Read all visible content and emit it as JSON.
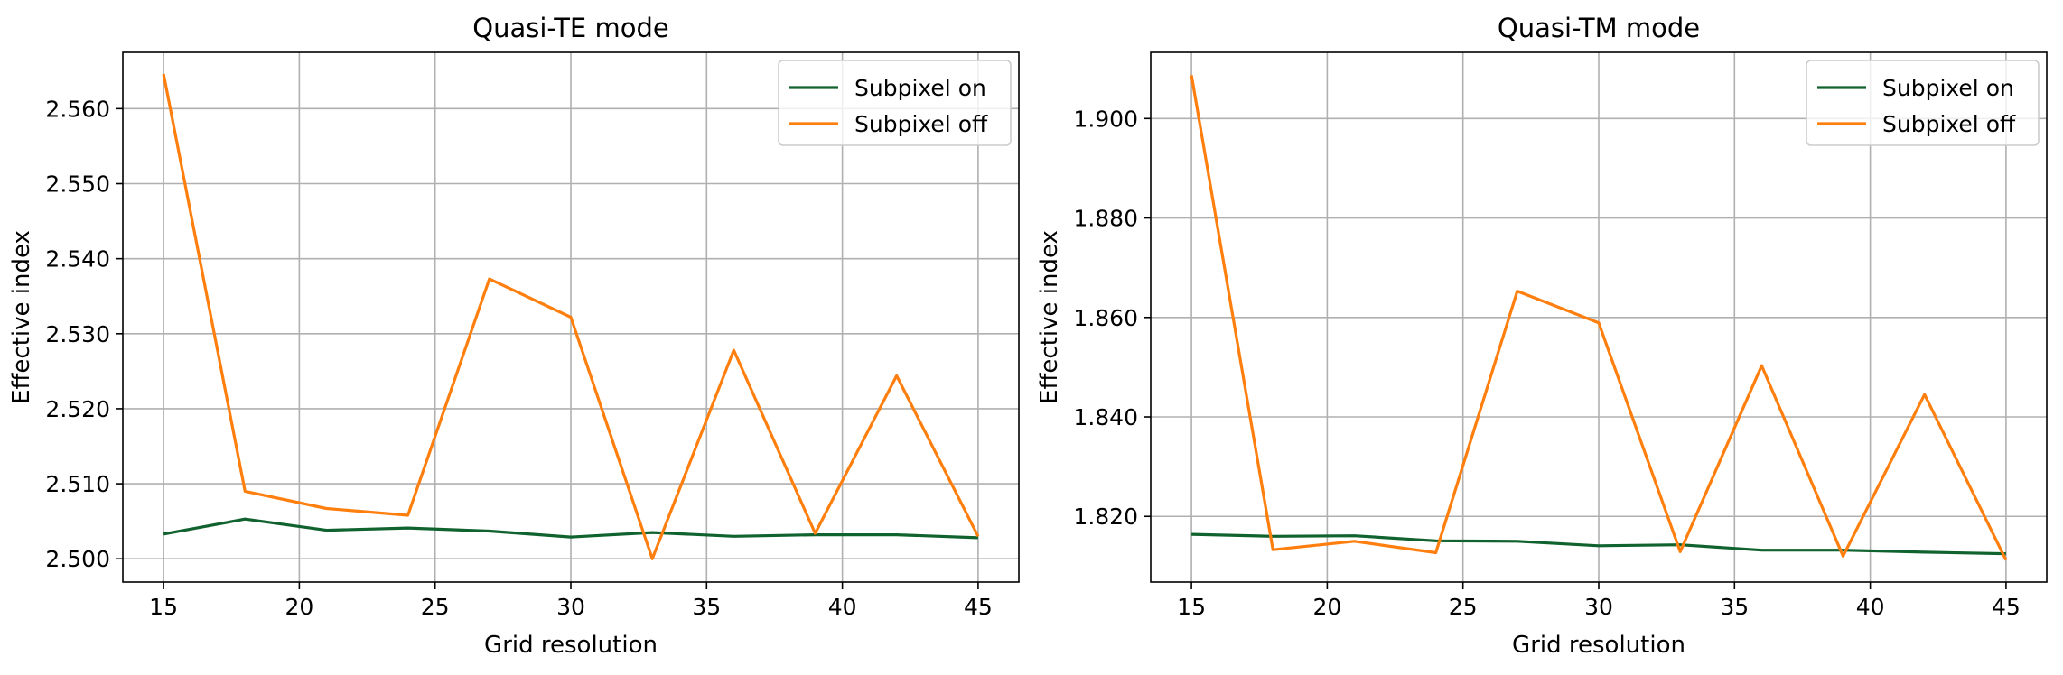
{
  "chart_data": [
    {
      "type": "line",
      "title": "Quasi-TE mode",
      "xlabel": "Grid resolution",
      "ylabel": "Effective index",
      "x": [
        15,
        18,
        21,
        24,
        27,
        30,
        33,
        36,
        39,
        42,
        45
      ],
      "xlim": [
        13.5,
        46.5
      ],
      "ylim": [
        2.4969,
        2.5675
      ],
      "xticks": [
        15,
        20,
        25,
        30,
        35,
        40,
        45
      ],
      "xtick_labels": [
        "15",
        "20",
        "25",
        "30",
        "35",
        "40",
        "45"
      ],
      "yticks": [
        2.5,
        2.51,
        2.52,
        2.53,
        2.54,
        2.55,
        2.56
      ],
      "ytick_labels": [
        "2.500",
        "2.510",
        "2.520",
        "2.530",
        "2.540",
        "2.550",
        "2.560"
      ],
      "grid": true,
      "legend_position": "top-right",
      "series": [
        {
          "name": "Subpixel on",
          "color": "#10622e",
          "values": [
            2.5033,
            2.5053,
            2.5038,
            2.5041,
            2.5037,
            2.5029,
            2.5035,
            2.503,
            2.5032,
            2.5032,
            2.5028
          ]
        },
        {
          "name": "Subpixel off",
          "color": "#ff7f0e",
          "values": [
            2.5646,
            2.509,
            2.5067,
            2.5058,
            2.5373,
            2.5322,
            2.5,
            2.5278,
            2.5034,
            2.5244,
            2.503
          ]
        }
      ]
    },
    {
      "type": "line",
      "title": "Quasi-TM mode",
      "xlabel": "Grid resolution",
      "ylabel": "Effective index",
      "x": [
        15,
        18,
        21,
        24,
        27,
        30,
        33,
        36,
        39,
        42,
        45
      ],
      "xlim": [
        13.5,
        46.5
      ],
      "ylim": [
        1.8068,
        1.9133
      ],
      "xticks": [
        15,
        20,
        25,
        30,
        35,
        40,
        45
      ],
      "xtick_labels": [
        "15",
        "20",
        "25",
        "30",
        "35",
        "40",
        "45"
      ],
      "yticks": [
        1.82,
        1.84,
        1.86,
        1.88,
        1.9
      ],
      "ytick_labels": [
        "1.820",
        "1.840",
        "1.860",
        "1.880",
        "1.900"
      ],
      "grid": true,
      "legend_position": "top-right",
      "series": [
        {
          "name": "Subpixel on",
          "color": "#10622e",
          "values": [
            1.8164,
            1.816,
            1.8161,
            1.8151,
            1.815,
            1.8141,
            1.8143,
            1.8132,
            1.8132,
            1.8128,
            1.8125
          ]
        },
        {
          "name": "Subpixel off",
          "color": "#ff7f0e",
          "values": [
            1.9087,
            1.8133,
            1.815,
            1.8127,
            1.8653,
            1.8589,
            1.8129,
            1.8503,
            1.812,
            1.8445,
            1.8112
          ]
        }
      ]
    }
  ]
}
